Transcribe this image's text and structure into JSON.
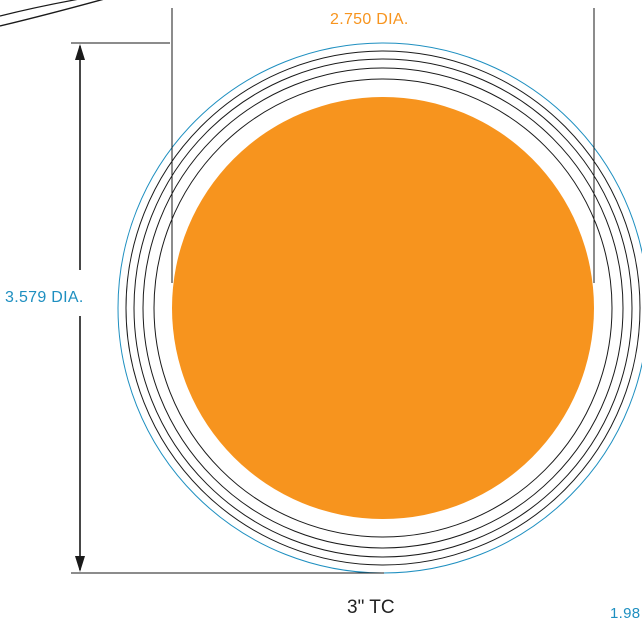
{
  "drawing": {
    "title": "3\"  TC",
    "dimensions": {
      "top_dia": "2.750 DIA.",
      "left_dia": "3.579 DIA.",
      "right_partial": "1.98"
    }
  },
  "colors": {
    "orange_fill": "#F7941E",
    "orange_text": "#F7941E",
    "blue_outline": "#1E8FC0",
    "blue_text": "#1E8FC0",
    "ring_stroke": "#1a1a1a",
    "dim_line": "#1a1a1a"
  }
}
